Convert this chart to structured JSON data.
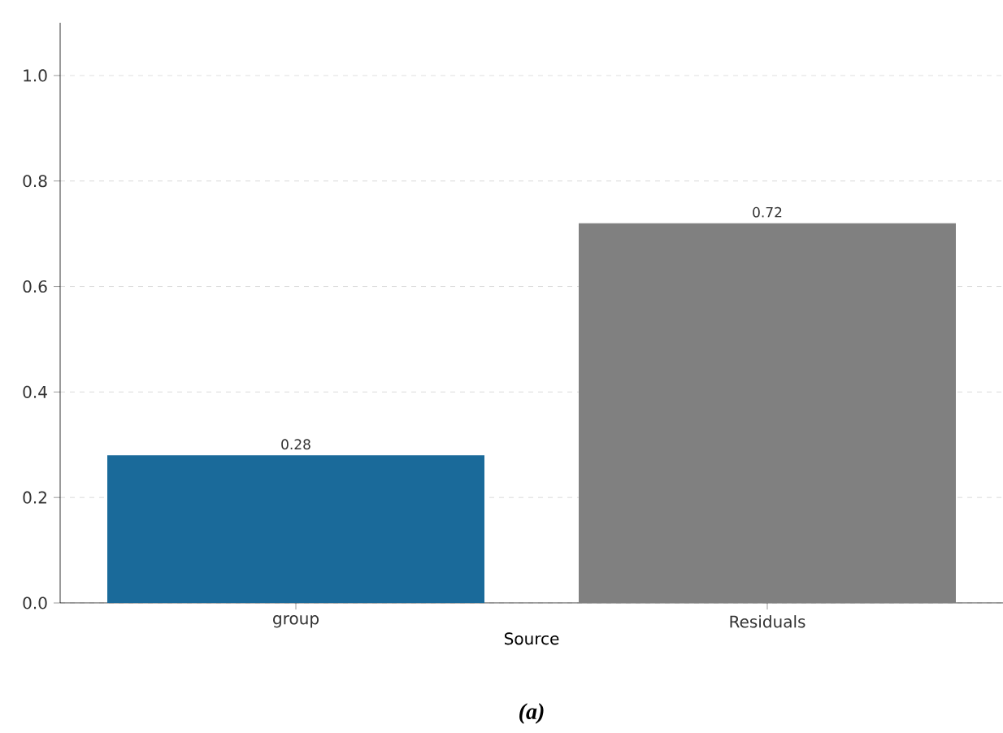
{
  "chart_data": {
    "type": "bar",
    "xlabel": "Source",
    "categories": [
      "group",
      "Residuals"
    ],
    "values": [
      0.28,
      0.72
    ],
    "colors": [
      "#1a6a9a",
      "#808080"
    ],
    "ylim": [
      0,
      1.1
    ],
    "yticks": [
      {
        "value": 0,
        "label": "0.0"
      },
      {
        "value": 0.2,
        "label": "0.2"
      },
      {
        "value": 0.4,
        "label": "0.4"
      },
      {
        "value": 0.6,
        "label": "0.6"
      },
      {
        "value": 0.8,
        "label": "0.8"
      },
      {
        "value": 1.0,
        "label": "1.0"
      }
    ],
    "grid": "y",
    "data_labels": true,
    "annotations": [
      "*(a)*"
    ]
  }
}
